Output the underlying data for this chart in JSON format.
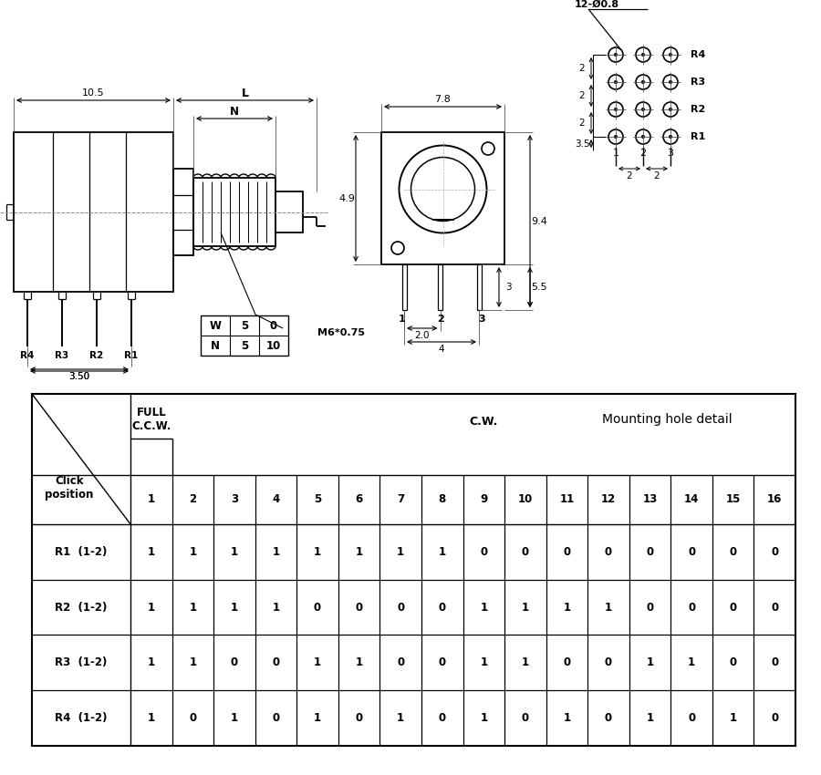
{
  "bg_color": "#ffffff",
  "line_color": "#000000",
  "table_rows": [
    "R1  (1-2)",
    "R2  (1-2)",
    "R3  (1-2)",
    "R4  (1-2)"
  ],
  "table_cols": [
    "1",
    "2",
    "3",
    "4",
    "5",
    "6",
    "7",
    "8",
    "9",
    "10",
    "11",
    "12",
    "13",
    "14",
    "15",
    "16"
  ],
  "table_values": [
    [
      1,
      1,
      1,
      1,
      1,
      1,
      1,
      1,
      0,
      0,
      0,
      0,
      0,
      0,
      0,
      0
    ],
    [
      1,
      1,
      1,
      1,
      0,
      0,
      0,
      0,
      1,
      1,
      1,
      1,
      0,
      0,
      0,
      0
    ],
    [
      1,
      1,
      0,
      0,
      1,
      1,
      0,
      0,
      1,
      1,
      0,
      0,
      1,
      1,
      0,
      0
    ],
    [
      1,
      0,
      1,
      0,
      1,
      0,
      1,
      0,
      1,
      0,
      1,
      0,
      1,
      0,
      1,
      0
    ]
  ],
  "wn_table": {
    "headers": [
      "W",
      "N"
    ],
    "col1": [
      "5",
      "5"
    ],
    "col2": [
      "0",
      "10"
    ]
  },
  "mounting_hole_label": "12-Ø0.8",
  "mounting_detail_text": "Mounting hole detail",
  "m6_label": "M6*0.75"
}
